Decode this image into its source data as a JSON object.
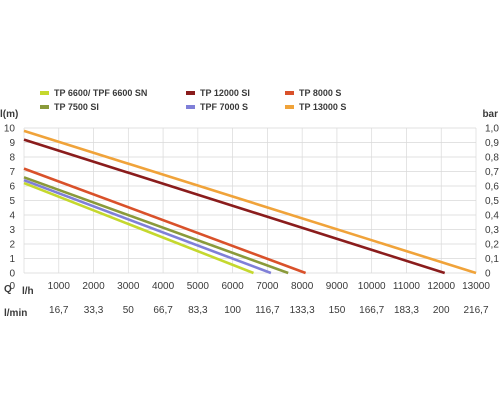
{
  "chart_data": {
    "type": "line",
    "title": "",
    "y_left_label": "l(m)",
    "y_right_label": "bar",
    "x_row_label": "Q",
    "x_unit_label": "l/h",
    "x_alt_unit_label": "l/min",
    "xlim": [
      0,
      13000
    ],
    "ylim": [
      0,
      10
    ],
    "x_ticks": [
      "0",
      "1000",
      "2000",
      "3000",
      "4000",
      "5000",
      "6000",
      "7000",
      "8000",
      "9000",
      "10000",
      "11000",
      "12000",
      "13000"
    ],
    "x_alt_ticks": [
      "16,7",
      "33,3",
      "50",
      "66,7",
      "83,3",
      "100",
      "116,7",
      "133,3",
      "150",
      "166,7",
      "183,3",
      "200",
      "216,7"
    ],
    "y_left_ticks": [
      "0",
      "1",
      "2",
      "3",
      "4",
      "5",
      "6",
      "7",
      "8",
      "9",
      "10"
    ],
    "y_right_ticks": [
      "0",
      "0,1",
      "0,2",
      "0,3",
      "0,4",
      "0,5",
      "0,6",
      "0,7",
      "0,8",
      "0,9",
      "1,0"
    ],
    "grid": true,
    "legend_position": "top",
    "series": [
      {
        "name": "TP 6600/ TPF 6600 SN",
        "color": "#c5d82e",
        "x": [
          0,
          6600
        ],
        "y": [
          6.2,
          0
        ]
      },
      {
        "name": "TPF 7000 S",
        "color": "#7f7fd8",
        "x": [
          0,
          7100
        ],
        "y": [
          6.4,
          0
        ]
      },
      {
        "name": "TP 7500 SI",
        "color": "#8a9a3a",
        "x": [
          0,
          7600
        ],
        "y": [
          6.6,
          0
        ]
      },
      {
        "name": "TP 8000 S",
        "color": "#d9512a",
        "x": [
          0,
          8100
        ],
        "y": [
          7.2,
          0
        ]
      },
      {
        "name": "TP 12000 SI",
        "color": "#8a1c1c",
        "x": [
          0,
          12100
        ],
        "y": [
          9.2,
          0
        ]
      },
      {
        "name": "TP 13000 S",
        "color": "#f0a33a",
        "x": [
          0,
          13000
        ],
        "y": [
          9.8,
          0
        ]
      }
    ],
    "legend_order": [
      0,
      2,
      4,
      1,
      3,
      5
    ]
  }
}
